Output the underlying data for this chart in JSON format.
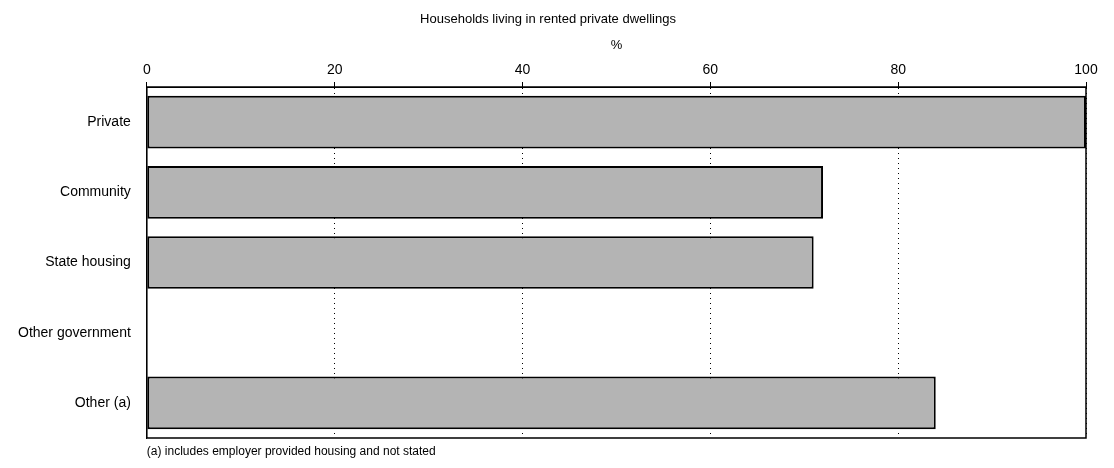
{
  "chart_data": {
    "type": "bar",
    "orientation": "horizontal",
    "title": "Households living in rented private dwellings",
    "xlabel": "%",
    "categories": [
      "Private",
      "Community",
      "State housing",
      "Other government",
      "Other (a)"
    ],
    "values": [
      100,
      72,
      71,
      null,
      84
    ],
    "color": "#b4b4b4",
    "xlim": [
      0,
      100
    ],
    "xticks": [
      0,
      20,
      40,
      60,
      80,
      100
    ],
    "grid": "x",
    "line_style": "dotted",
    "annotations": [
      "(a) includes employer provided housing and not stated"
    ]
  }
}
